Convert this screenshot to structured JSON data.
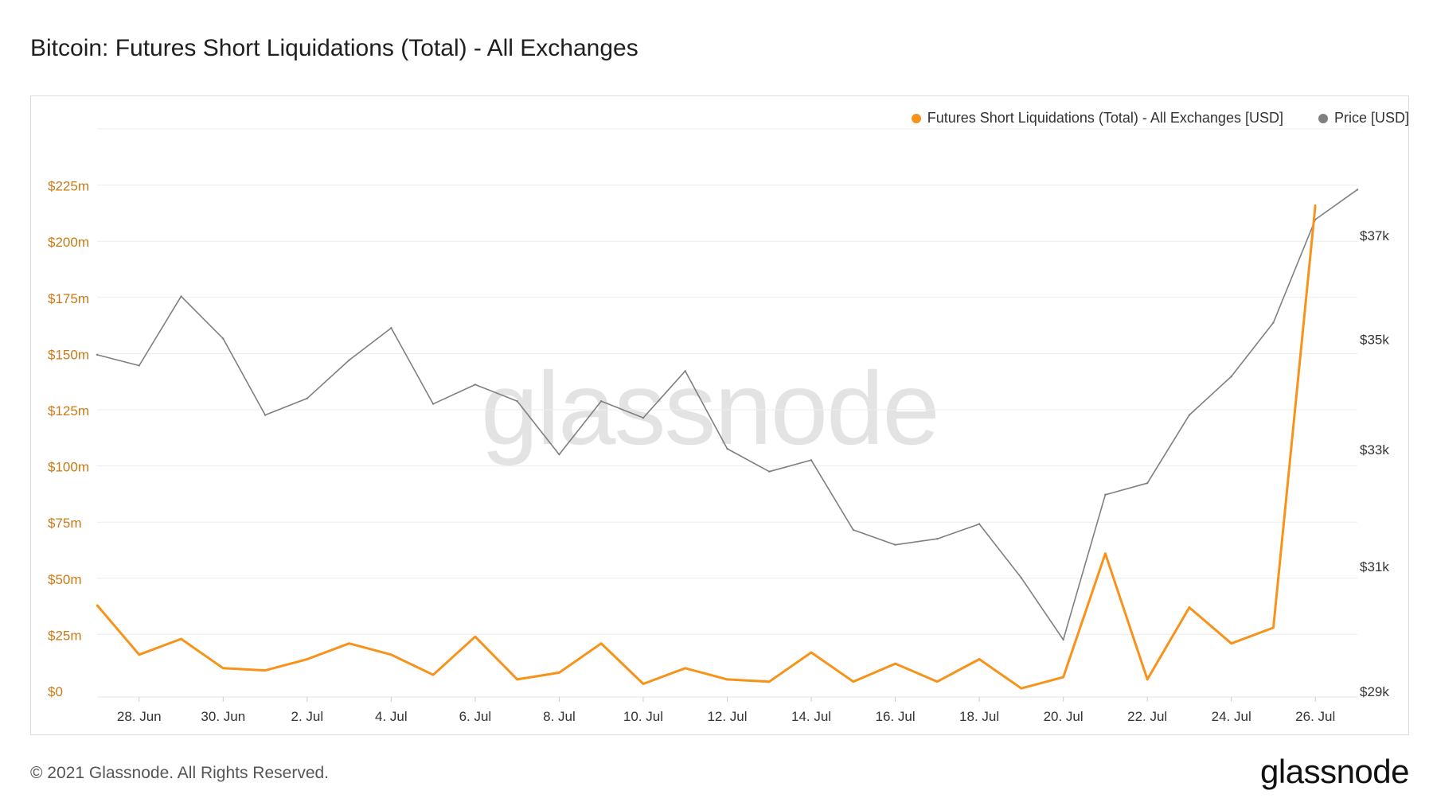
{
  "title": "Bitcoin: Futures Short Liquidations (Total) - All Exchanges",
  "legend": {
    "series1": "Futures Short Liquidations (Total) - All Exchanges [USD]",
    "series2": "Price [USD]"
  },
  "watermark": "glassnode",
  "footer": {
    "copyright": "© 2021 Glassnode. All Rights Reserved.",
    "logo": "glassnode"
  },
  "colors": {
    "liquidations": "#f7931a",
    "price": "#7f7f7f",
    "left_axis_text": "#c87a16",
    "right_axis_text": "#333333",
    "grid": "#ececec"
  },
  "chart_data": {
    "type": "line",
    "x": [
      "27 Jun",
      "28 Jun",
      "29 Jun",
      "30 Jun",
      "1 Jul",
      "2 Jul",
      "3 Jul",
      "4 Jul",
      "5 Jul",
      "6 Jul",
      "7 Jul",
      "8 Jul",
      "9 Jul",
      "10 Jul",
      "11 Jul",
      "12 Jul",
      "13 Jul",
      "14 Jul",
      "15 Jul",
      "16 Jul",
      "17 Jul",
      "18 Jul",
      "19 Jul",
      "20 Jul",
      "21 Jul",
      "22 Jul",
      "23 Jul",
      "24 Jul",
      "25 Jul",
      "26 Jul",
      "27 Jul"
    ],
    "x_tick_labels": [
      "28. Jun",
      "30. Jun",
      "2. Jul",
      "4. Jul",
      "6. Jul",
      "8. Jul",
      "10. Jul",
      "12. Jul",
      "14. Jul",
      "16. Jul",
      "18. Jul",
      "20. Jul",
      "22. Jul",
      "24. Jul",
      "26. Jul"
    ],
    "x_tick_indices": [
      1,
      3,
      5,
      7,
      9,
      11,
      13,
      15,
      17,
      19,
      21,
      23,
      25,
      27,
      29
    ],
    "y_left": {
      "tick_labels": [
        "$0",
        "$25m",
        "$50m",
        "$75m",
        "$100m",
        "$125m",
        "$150m",
        "$175m",
        "$200m",
        "$225m"
      ],
      "tick_values": [
        0,
        25,
        50,
        75,
        100,
        125,
        150,
        175,
        200,
        225
      ],
      "range": [
        0,
        250
      ],
      "unit": "USD millions"
    },
    "y_right": {
      "tick_labels": [
        "$29k",
        "$31k",
        "$33k",
        "$35k",
        "$37k"
      ],
      "tick_values": [
        29000,
        31000,
        33000,
        35000,
        37000
      ],
      "range": [
        29000,
        37970
      ],
      "scale": "log",
      "unit": "USD"
    },
    "series": [
      {
        "name": "Futures Short Liquidations (Total) - All Exchanges [USD]",
        "axis": "left",
        "values": [
          38,
          16,
          23,
          10,
          9,
          14,
          21,
          16,
          7,
          24,
          5,
          8,
          21,
          3,
          10,
          5,
          4,
          17,
          4,
          12,
          4,
          14,
          1,
          6,
          61,
          5,
          37,
          21,
          28,
          216,
          null
        ]
      },
      {
        "name": "Price [USD]",
        "axis": "right",
        "values": [
          34700,
          34500,
          35800,
          35000,
          33600,
          33900,
          34600,
          35200,
          33800,
          34150,
          33850,
          32900,
          33850,
          33550,
          34400,
          33000,
          32600,
          32800,
          31600,
          31350,
          31450,
          31700,
          30800,
          29800,
          32200,
          32400,
          33600,
          34300,
          35300,
          37300,
          37900
        ]
      }
    ]
  }
}
